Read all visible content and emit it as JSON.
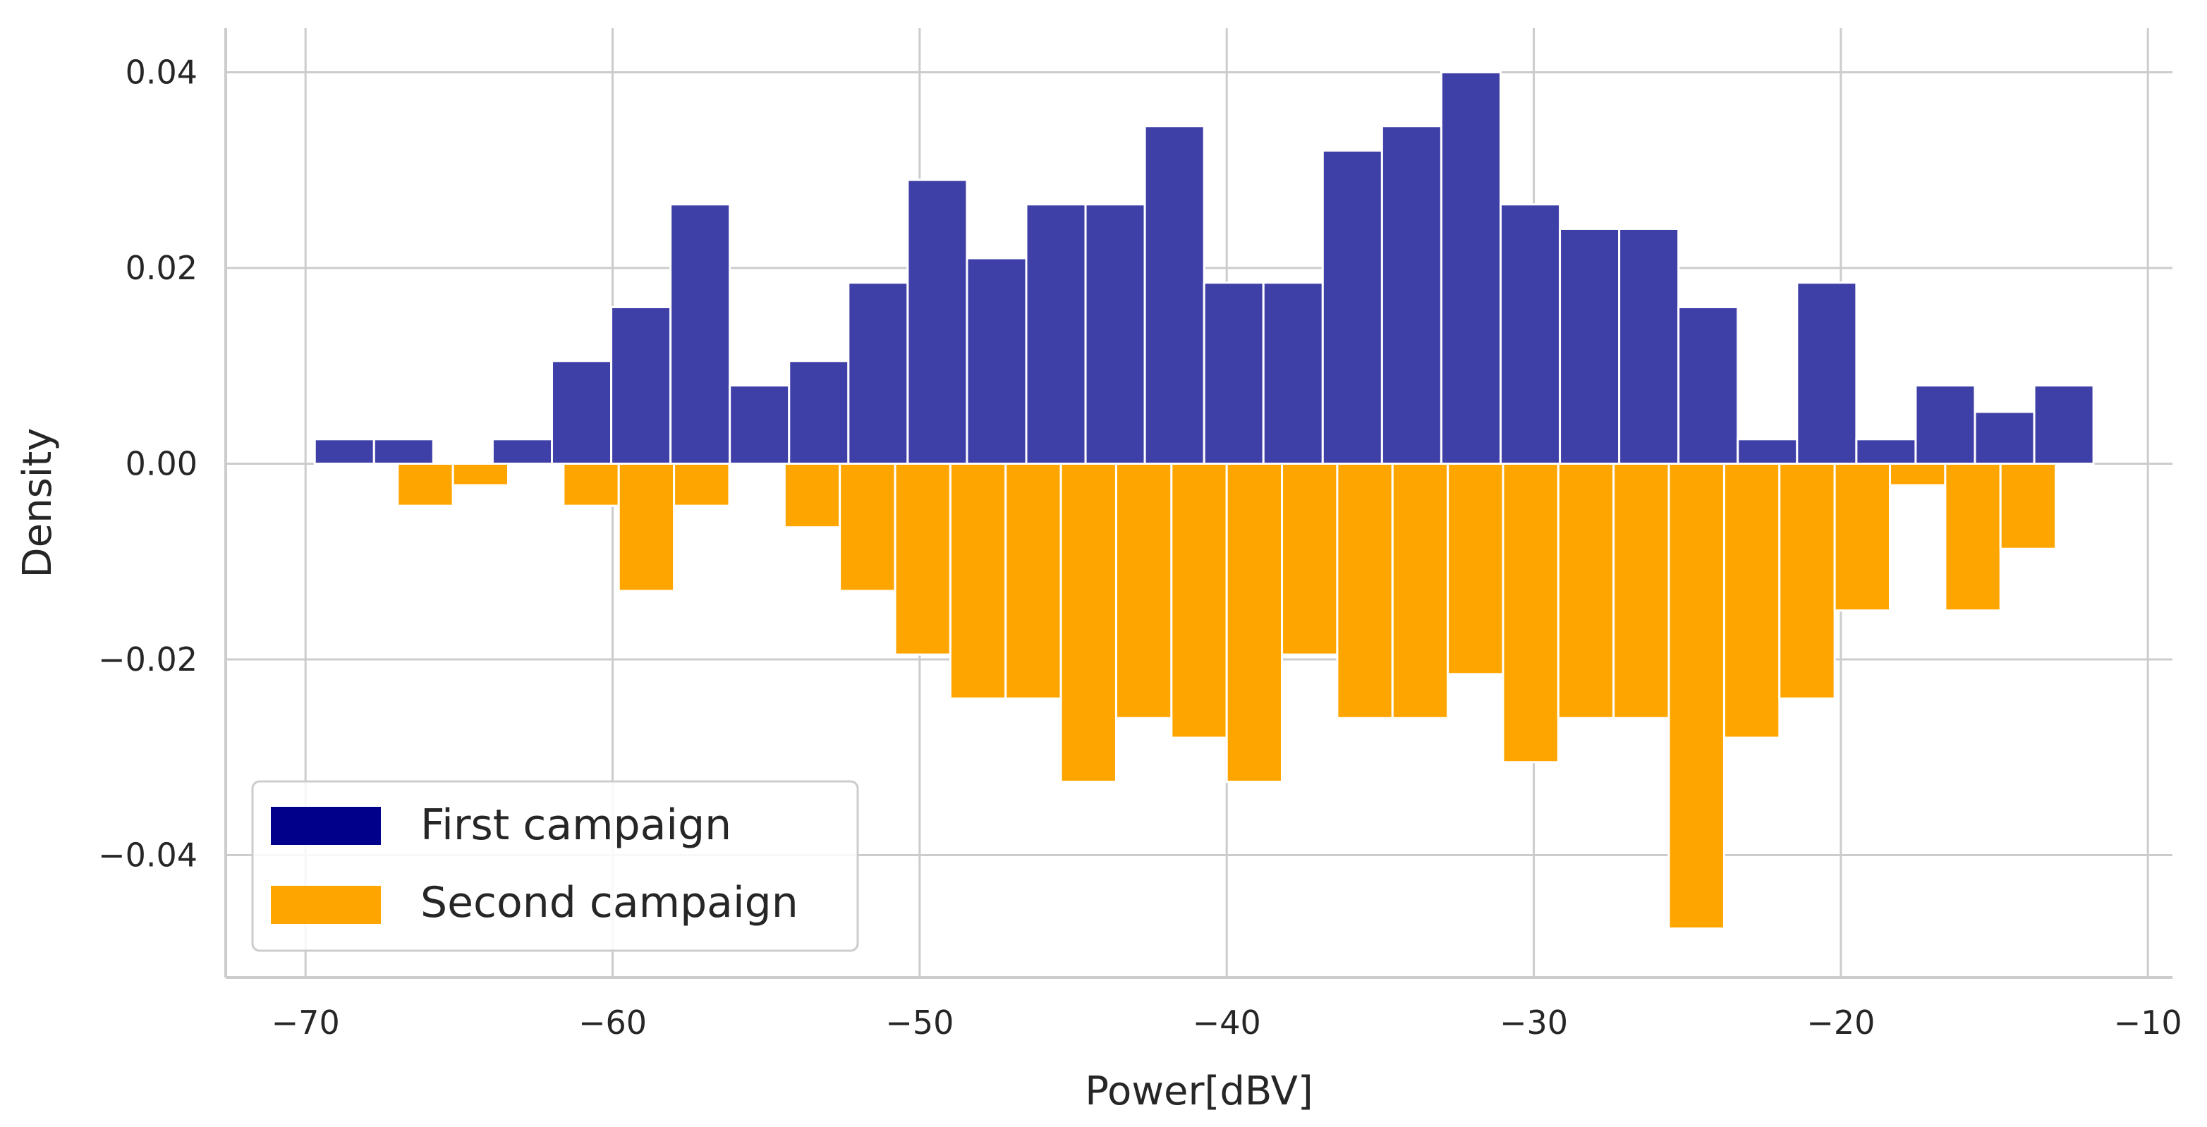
{
  "chart_data": {
    "type": "bar",
    "title": "",
    "xlabel": "Power[dBV]",
    "ylabel": "Density",
    "xlim": [
      -72.6,
      -9.2
    ],
    "ylim": [
      -0.0525,
      0.0445
    ],
    "xticks": [
      -70,
      -60,
      -50,
      -40,
      -30,
      -20,
      -10
    ],
    "xtick_labels": [
      "−70",
      "−60",
      "−50",
      "−40",
      "−30",
      "−20",
      "−10"
    ],
    "yticks": [
      0.04,
      0.02,
      0.0,
      -0.02,
      -0.04
    ],
    "ytick_labels": [
      "0.04",
      "0.02",
      "0.00",
      "−0.02",
      "−0.04"
    ],
    "grid": true,
    "legend_position": "bottom-left",
    "series": [
      {
        "name": "First campaign",
        "color": "#00008b",
        "fill": "#3f3fa8",
        "bin_start": -69.7,
        "bin_width": 1.931,
        "values": [
          0.0025,
          0.0025,
          0.0,
          0.0025,
          0.0105,
          0.016,
          0.0265,
          0.008,
          0.0105,
          0.0185,
          0.029,
          0.021,
          0.0265,
          0.0265,
          0.0345,
          0.0185,
          0.0185,
          0.032,
          0.0345,
          0.04,
          0.0265,
          0.024,
          0.024,
          0.016,
          0.0025,
          0.0185,
          0.0025,
          0.008,
          0.0053,
          0.008
        ]
      },
      {
        "name": "Second campaign",
        "color": "#ffa500",
        "fill": "#ffa500",
        "bin_start": -67.0,
        "bin_width": 1.8,
        "values": [
          -0.0043,
          -0.0022,
          0.0,
          -0.0043,
          -0.013,
          -0.0043,
          0.0,
          -0.0065,
          -0.013,
          -0.0195,
          -0.024,
          -0.024,
          -0.0325,
          -0.026,
          -0.028,
          -0.0325,
          -0.0195,
          -0.026,
          -0.026,
          -0.0215,
          -0.0305,
          -0.026,
          -0.026,
          -0.0475,
          -0.028,
          -0.024,
          -0.015,
          -0.0022,
          -0.015,
          -0.0087
        ]
      }
    ]
  }
}
